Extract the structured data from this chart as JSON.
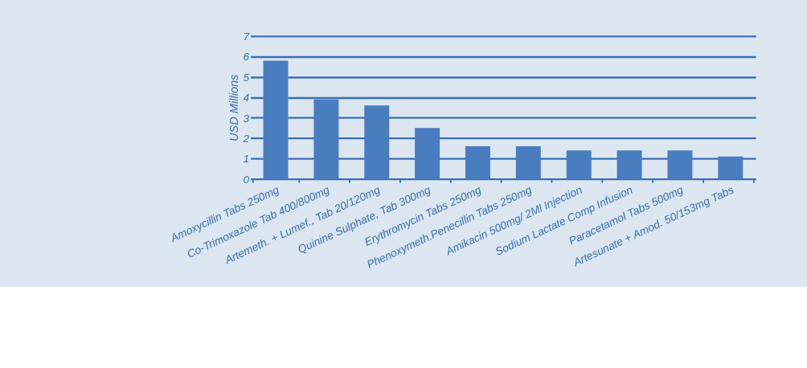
{
  "chart_data": {
    "type": "bar",
    "ylabel": "USD  Millions",
    "categories": [
      "Amoxycillin Tabs 250mg",
      "Co-Trimoxazole Tab 400/800mg",
      "Artemeth. + Lumef., Tab 20/120mg",
      "Quinine Sulphate, Tab 300mg",
      "Erythromycin Tabs 250mg",
      "Phenoxymeth.Penecillin Tabs 250mg",
      "Amikacin 500mg/ 2Ml Injection",
      "Sodium Lactate Comp Infusion",
      "Paracetamol Tabs 500mg",
      "Artesunate + Amod. 50/153mg Tabs"
    ],
    "values": [
      5.8,
      3.9,
      3.6,
      2.5,
      1.6,
      1.6,
      1.4,
      1.4,
      1.4,
      1.1
    ],
    "color": "#4a7cc0",
    "ylim": [
      0,
      7
    ],
    "yticks": [
      0,
      1,
      2,
      3,
      4,
      5,
      6,
      7
    ],
    "grid": "y"
  }
}
